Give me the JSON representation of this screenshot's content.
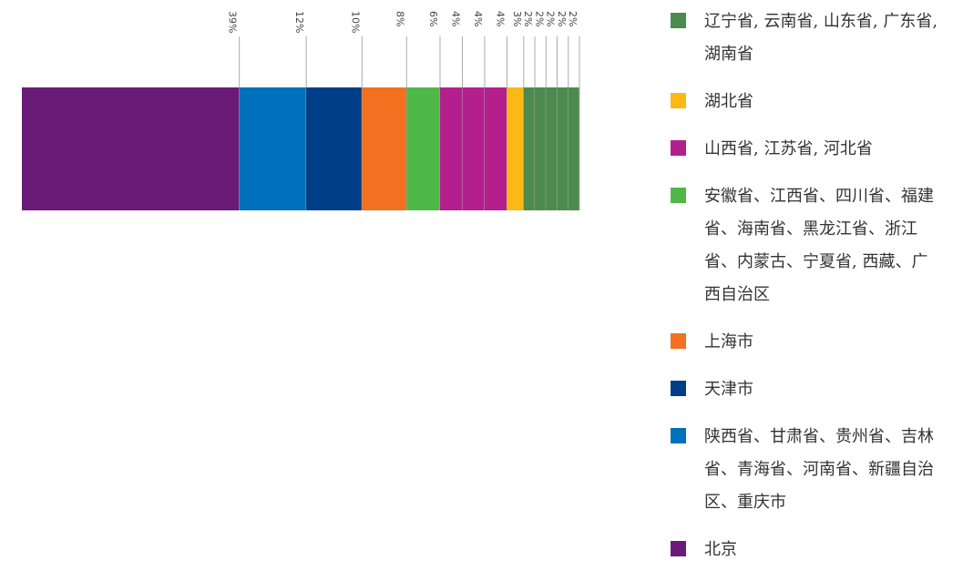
{
  "chart_data": {
    "type": "bar",
    "orientation": "horizontal",
    "stacked": true,
    "xlim": [
      0,
      100
    ],
    "series": [
      {
        "name": "北京",
        "color": "#6a1b78",
        "values": [
          39
        ],
        "value_labels": [
          "39%"
        ]
      },
      {
        "name": "陕西省、甘肃省、贵州省、吉林省、青海省、河南省、新疆自治区、重庆市",
        "color": "#0071bc",
        "values": [
          12
        ],
        "value_labels": [
          "12%"
        ]
      },
      {
        "name": "天津市",
        "color": "#003f87",
        "values": [
          10
        ],
        "value_labels": [
          "10%"
        ]
      },
      {
        "name": "上海市",
        "color": "#f37021",
        "values": [
          8
        ],
        "value_labels": [
          "8%"
        ]
      },
      {
        "name": "安徽省、江西省、四川省、福建省、海南省、黑龙江省、浙江省、内蒙古、宁夏省, 西藏、广西自治区",
        "color": "#50b848",
        "values": [
          6
        ],
        "value_labels": [
          "6%"
        ]
      },
      {
        "name": "山西省, 江苏省, 河北省",
        "color": "#b41f8e",
        "values": [
          4,
          4,
          4
        ],
        "value_labels": [
          "4%",
          "4%",
          "4%"
        ]
      },
      {
        "name": "湖北省",
        "color": "#fdb813",
        "values": [
          3
        ],
        "value_labels": [
          "3%"
        ]
      },
      {
        "name": "辽宁省, 云南省, 山东省, 广东省, 湖南省",
        "color": "#4c8a4e",
        "values": [
          2,
          2,
          2,
          2,
          2
        ],
        "value_labels": [
          "2%",
          "2%",
          "2%",
          "2%",
          "2%"
        ]
      }
    ]
  }
}
